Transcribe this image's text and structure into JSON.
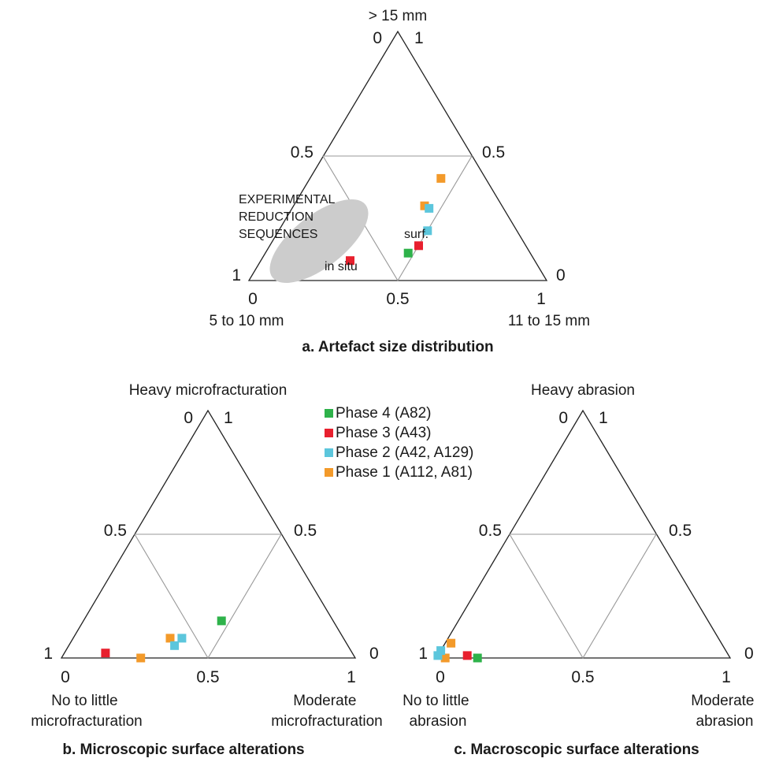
{
  "chart_data": [
    {
      "type": "scatter",
      "title": "a. Artefact size distribution",
      "ternary": true,
      "corners": {
        "top": "> 15 mm",
        "left": "5 to 10 mm",
        "right": "11 to 15 mm"
      },
      "ticks": {
        "top_left": "0",
        "top_right": "1",
        "mid_left": "0.5",
        "mid_right": "0.5",
        "left_side": "1",
        "right_side": "0",
        "bottom_left": "0",
        "bottom_mid": "0.5",
        "bottom_right": "1"
      },
      "annotation": {
        "lines": [
          "EXPERIMENTAL",
          "REDUCTION",
          "SEQUENCES"
        ]
      },
      "point_labels": {
        "insitu": "in situ",
        "surf": "surf."
      },
      "grid": true,
      "points": [
        {
          "phase": "Phase 1 (A112, A81)",
          "a": 0.41,
          "b": 0.15,
          "c": 0.44
        },
        {
          "phase": "Phase 1 (A112, A81)",
          "a": 0.3,
          "b": 0.26,
          "c": 0.44
        },
        {
          "phase": "Phase 2 (A42, A129)",
          "a": 0.29,
          "b": 0.25,
          "c": 0.46
        },
        {
          "phase": "Phase 2 (A42, A129)",
          "a": 0.2,
          "b": 0.3,
          "c": 0.5
        },
        {
          "phase": "Phase 3 (A43)",
          "a": 0.14,
          "b": 0.36,
          "c": 0.5,
          "label": "surf."
        },
        {
          "phase": "Phase 3 (A43)",
          "a": 0.08,
          "b": 0.62,
          "c": 0.3,
          "label": "in situ"
        },
        {
          "phase": "Phase 4 (A82)",
          "a": 0.11,
          "b": 0.41,
          "c": 0.48
        }
      ]
    },
    {
      "type": "scatter",
      "title": "b. Microscopic surface alterations",
      "ternary": true,
      "corners": {
        "top": "Heavy microfracturation",
        "left": "No to little microfracturation",
        "right": "Moderate microfracturation"
      },
      "ticks": {
        "top_left": "0",
        "top_right": "1",
        "mid_left": "0.5",
        "mid_right": "0.5",
        "left_side": "1",
        "right_side": "0",
        "bottom_left": "0",
        "bottom_mid": "0.5",
        "bottom_right": "1"
      },
      "grid": true,
      "points": [
        {
          "phase": "Phase 1 (A112, A81)",
          "a": 0.08,
          "b": 0.59,
          "c": 0.33
        },
        {
          "phase": "Phase 1 (A112, A81)",
          "a": 0.0,
          "b": 0.73,
          "c": 0.27
        },
        {
          "phase": "Phase 2 (A42, A129)",
          "a": 0.08,
          "b": 0.55,
          "c": 0.37
        },
        {
          "phase": "Phase 2 (A42, A129)",
          "a": 0.05,
          "b": 0.59,
          "c": 0.36
        },
        {
          "phase": "Phase 3 (A43)",
          "a": 0.02,
          "b": 0.84,
          "c": 0.14
        },
        {
          "phase": "Phase 4 (A82)",
          "a": 0.15,
          "b": 0.38,
          "c": 0.47
        }
      ]
    },
    {
      "type": "scatter",
      "title": "c. Macroscopic surface alterations",
      "ternary": true,
      "corners": {
        "top": "Heavy abrasion",
        "left": "No to little abrasion",
        "right": "Moderate abrasion"
      },
      "ticks": {
        "top_left": "0",
        "top_right": "1",
        "mid_left": "0.5",
        "mid_right": "0.5",
        "left_side": "1",
        "right_side": "0",
        "bottom_left": "0",
        "bottom_mid": "0.5",
        "bottom_right": "1"
      },
      "grid": true,
      "points": [
        {
          "phase": "Phase 1 (A112, A81)",
          "a": 0.06,
          "b": 0.92,
          "c": 0.02
        },
        {
          "phase": "Phase 1 (A112, A81)",
          "a": 0.0,
          "b": 0.97,
          "c": 0.03
        },
        {
          "phase": "Phase 2 (A42, A129)",
          "a": 0.03,
          "b": 0.97,
          "c": 0.0
        },
        {
          "phase": "Phase 2 (A42, A129)",
          "a": 0.01,
          "b": 0.99,
          "c": 0.0
        },
        {
          "phase": "Phase 3 (A43)",
          "a": 0.01,
          "b": 0.89,
          "c": 0.1
        },
        {
          "phase": "Phase 4 (A82)",
          "a": 0.0,
          "b": 0.86,
          "c": 0.14
        }
      ]
    }
  ],
  "legend": {
    "items": [
      {
        "label": "Phase 4 (A82)",
        "color": "#2eb24a"
      },
      {
        "label": "Phase 3 (A43)",
        "color": "#e8202e"
      },
      {
        "label": "Phase 2 (A42, A129)",
        "color": "#5cc6dc"
      },
      {
        "label": "Phase 1 (A112, A81)",
        "color": "#f39a2a"
      }
    ]
  }
}
